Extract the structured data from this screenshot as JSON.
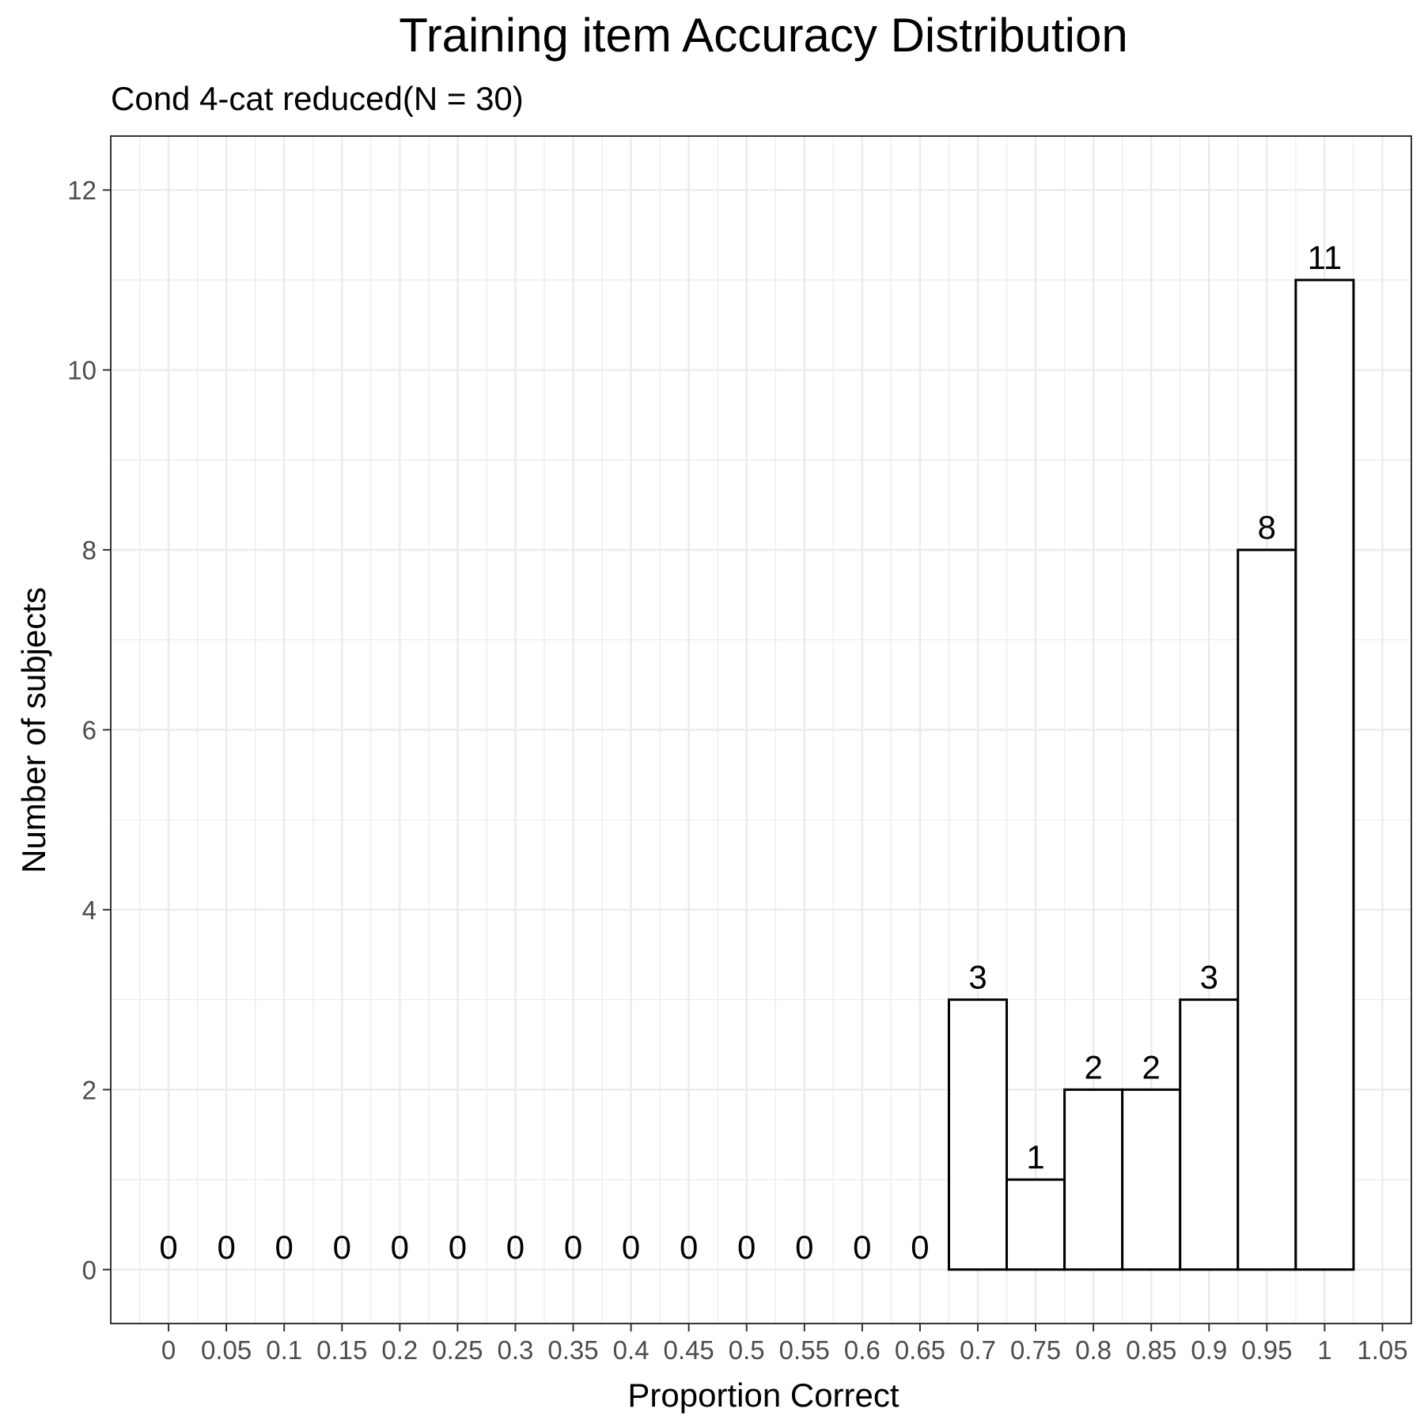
{
  "chart_data": {
    "type": "bar",
    "title": "Training item Accuracy Distribution",
    "subtitle": "Cond 4-cat reduced(N = 30)",
    "xlabel": "Proportion Correct",
    "ylabel": "Number of subjects",
    "x": [
      0,
      0.05,
      0.1,
      0.15,
      0.2,
      0.25,
      0.3,
      0.35,
      0.4,
      0.45,
      0.5,
      0.55,
      0.6,
      0.65,
      0.7,
      0.75,
      0.8,
      0.85,
      0.9,
      0.95,
      1
    ],
    "values": [
      0,
      0,
      0,
      0,
      0,
      0,
      0,
      0,
      0,
      0,
      0,
      0,
      0,
      0,
      3,
      1,
      2,
      2,
      3,
      8,
      11
    ],
    "x_ticks": [
      "0",
      "0.05",
      "0.1",
      "0.15",
      "0.2",
      "0.25",
      "0.3",
      "0.35",
      "0.4",
      "0.45",
      "0.5",
      "0.55",
      "0.6",
      "0.65",
      "0.7",
      "0.75",
      "0.8",
      "0.85",
      "0.9",
      "0.95",
      "1",
      "1.05"
    ],
    "y_ticks": [
      "0",
      "2",
      "4",
      "6",
      "8",
      "10",
      "12"
    ],
    "xlim": [
      -0.05,
      1.075
    ],
    "ylim": [
      -0.6,
      12.6
    ],
    "grid": true,
    "bar_fill": "#ffffff",
    "bar_stroke": "#000000",
    "grid_color": "#ebebeb"
  }
}
